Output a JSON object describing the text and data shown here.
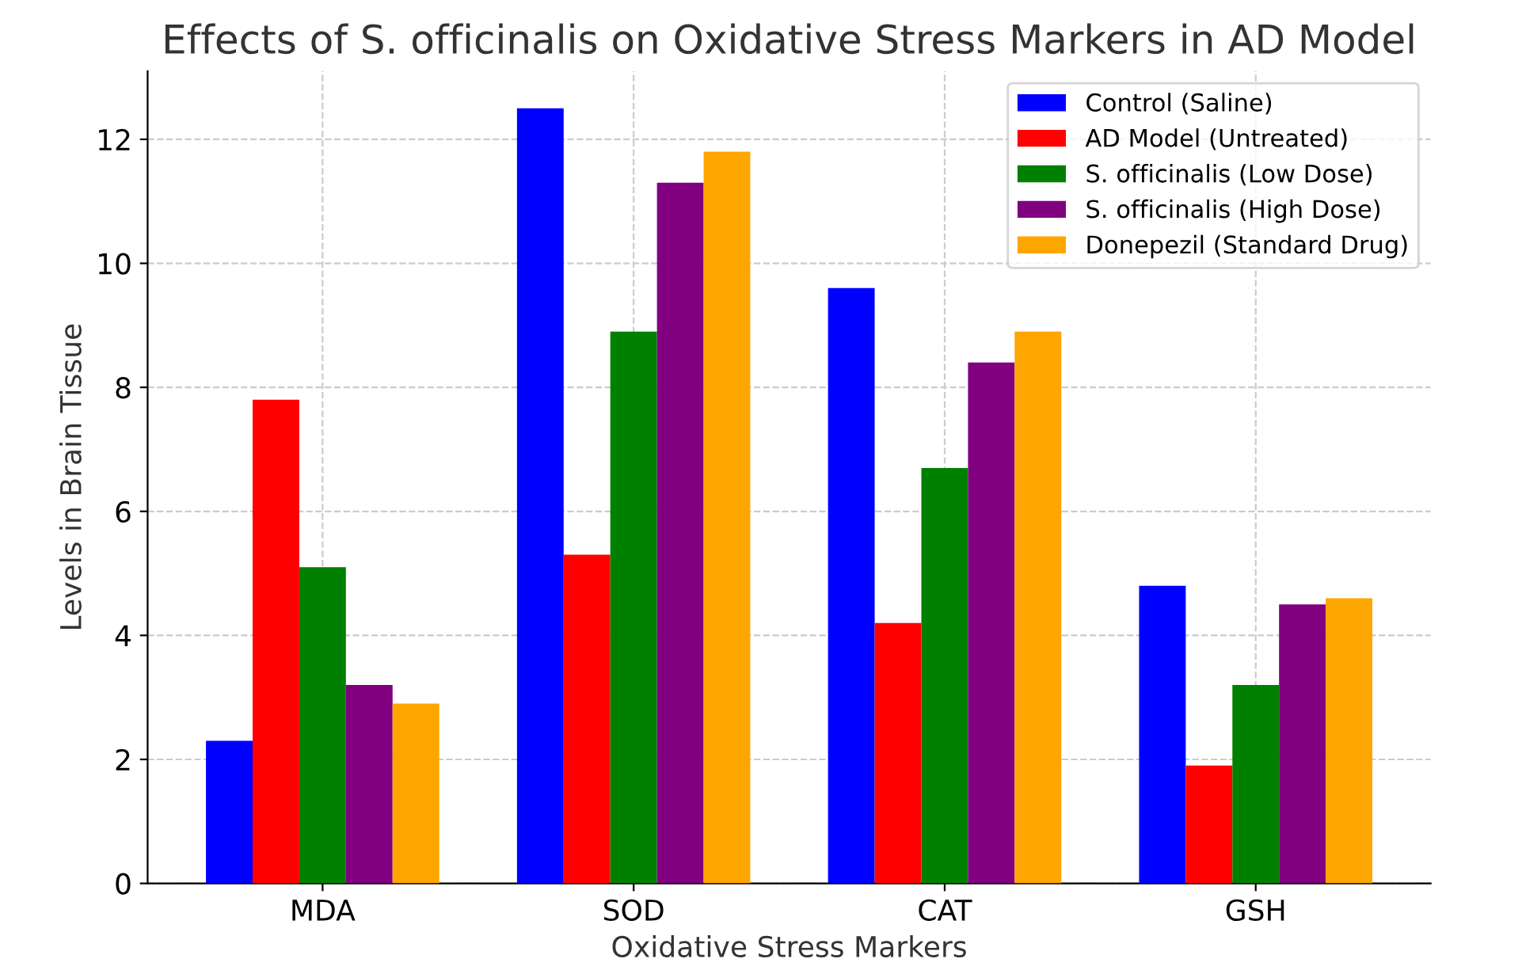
{
  "chart_data": {
    "type": "bar",
    "title": "Effects of S. officinalis on Oxidative Stress Markers in AD Model",
    "xlabel": "Oxidative Stress Markers",
    "ylabel": "Levels in Brain Tissue",
    "categories": [
      "MDA",
      "SOD",
      "CAT",
      "GSH"
    ],
    "series": [
      {
        "name": "Control (Saline)",
        "color": "#0000ff",
        "values": [
          2.3,
          12.5,
          9.6,
          4.8
        ]
      },
      {
        "name": "AD Model (Untreated)",
        "color": "#ff0000",
        "values": [
          7.8,
          5.3,
          4.2,
          1.9
        ]
      },
      {
        "name": "S. officinalis (Low Dose)",
        "color": "#008000",
        "values": [
          5.1,
          8.9,
          6.7,
          3.2
        ]
      },
      {
        "name": "S. officinalis (High Dose)",
        "color": "#800080",
        "values": [
          3.2,
          11.3,
          8.4,
          4.5
        ]
      },
      {
        "name": "Donepezil (Standard Drug)",
        "color": "#ffa500",
        "values": [
          2.9,
          11.8,
          8.9,
          4.6
        ]
      }
    ],
    "ylim": [
      0,
      13.1
    ],
    "yticks": [
      0,
      2,
      4,
      6,
      8,
      10,
      12
    ],
    "grid": true,
    "legend": "top right"
  }
}
